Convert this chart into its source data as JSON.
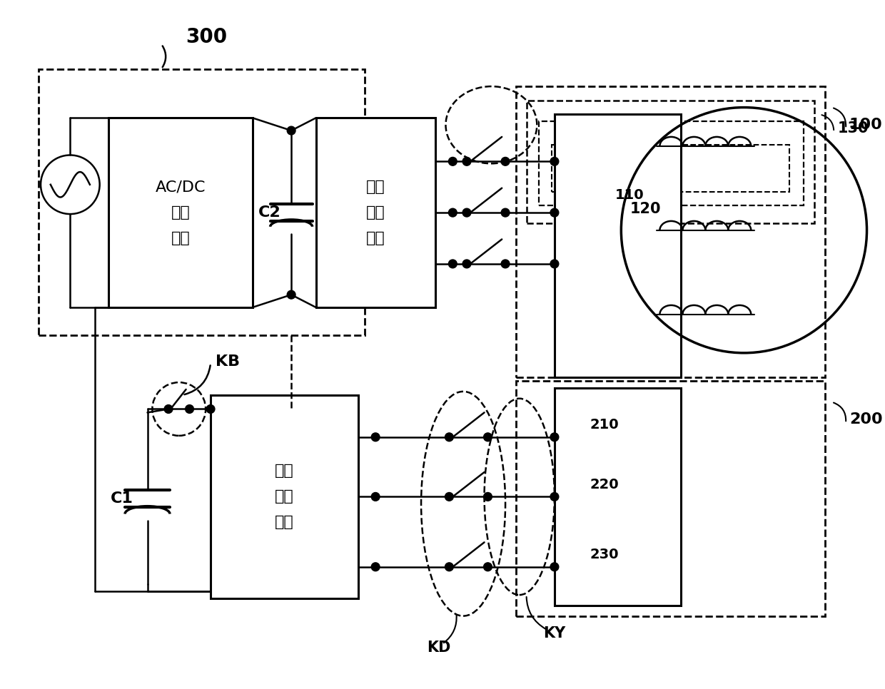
{
  "bg_color": "#ffffff",
  "black": "#000000",
  "label_300": "300",
  "label_c2": "C2",
  "label_c1": "C1",
  "label_kb": "KB",
  "label_kd": "KD",
  "label_ky": "KY",
  "label_100": "100",
  "label_110": "110",
  "label_120": "120",
  "label_130": "130",
  "label_200": "200",
  "label_210": "210",
  "label_220": "220",
  "label_230": "230",
  "box1_text": "AC/DC\n电源\n模块",
  "box2_text": "第一\n逆变\n模块",
  "box3_text": "第二\n逆变\n模块"
}
